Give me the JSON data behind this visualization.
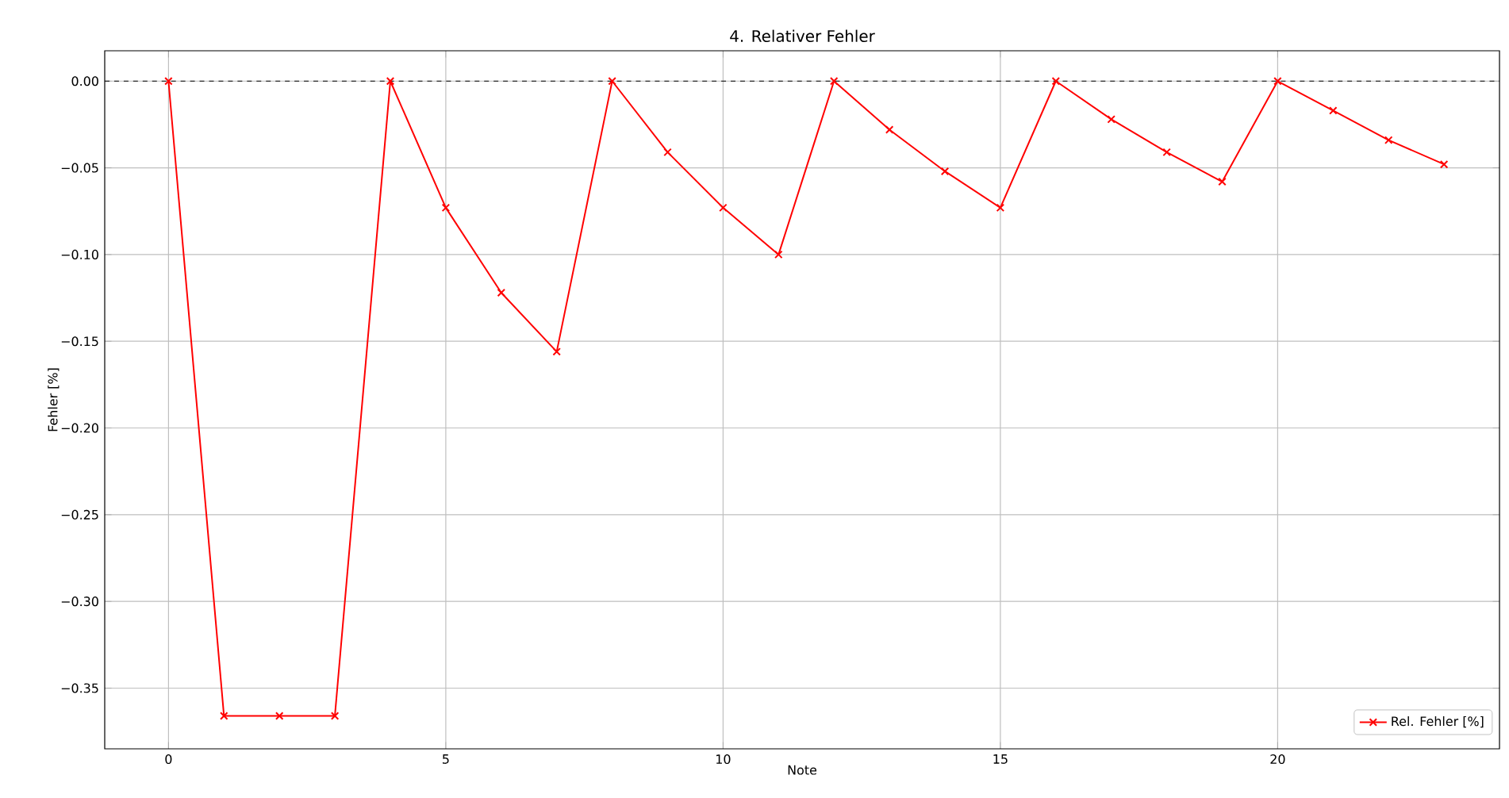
{
  "chart_data": {
    "type": "line",
    "title": "4. Relativer Fehler",
    "xlabel": "Note",
    "ylabel": "Fehler [%]",
    "x": [
      0,
      1,
      2,
      3,
      4,
      5,
      6,
      7,
      8,
      9,
      10,
      11,
      12,
      13,
      14,
      15,
      16,
      17,
      18,
      19,
      20,
      21,
      22,
      23
    ],
    "series": [
      {
        "name": "Rel. Fehler [%]",
        "color": "#ff0000",
        "values": [
          0,
          -0.366,
          -0.366,
          -0.366,
          0,
          -0.073,
          -0.122,
          -0.156,
          0,
          -0.041,
          -0.073,
          -0.1,
          0,
          -0.028,
          -0.052,
          -0.073,
          0,
          -0.022,
          -0.041,
          -0.058,
          0,
          -0.017,
          -0.034,
          -0.048
        ]
      }
    ],
    "xlim": [
      -1.15,
      24
    ],
    "ylim": [
      -0.385,
      0.0175
    ],
    "xticks": [
      0,
      5,
      10,
      15,
      20
    ],
    "yticks": [
      {
        "value": 0,
        "label": "0.00"
      },
      {
        "value": -0.05,
        "label": "−0.05"
      },
      {
        "value": -0.1,
        "label": "−0.10"
      },
      {
        "value": -0.15,
        "label": "−0.15"
      },
      {
        "value": -0.2,
        "label": "−0.20"
      },
      {
        "value": -0.25,
        "label": "−0.25"
      },
      {
        "value": -0.3,
        "label": "−0.30"
      },
      {
        "value": -0.35,
        "label": "−0.35"
      }
    ],
    "ref_lines": [
      {
        "axis": "y",
        "value": 0,
        "color": "#000000",
        "line_style": "dashed"
      }
    ],
    "grid": true,
    "legend": "bottom right",
    "marker": "cross",
    "line_style": "solid"
  }
}
